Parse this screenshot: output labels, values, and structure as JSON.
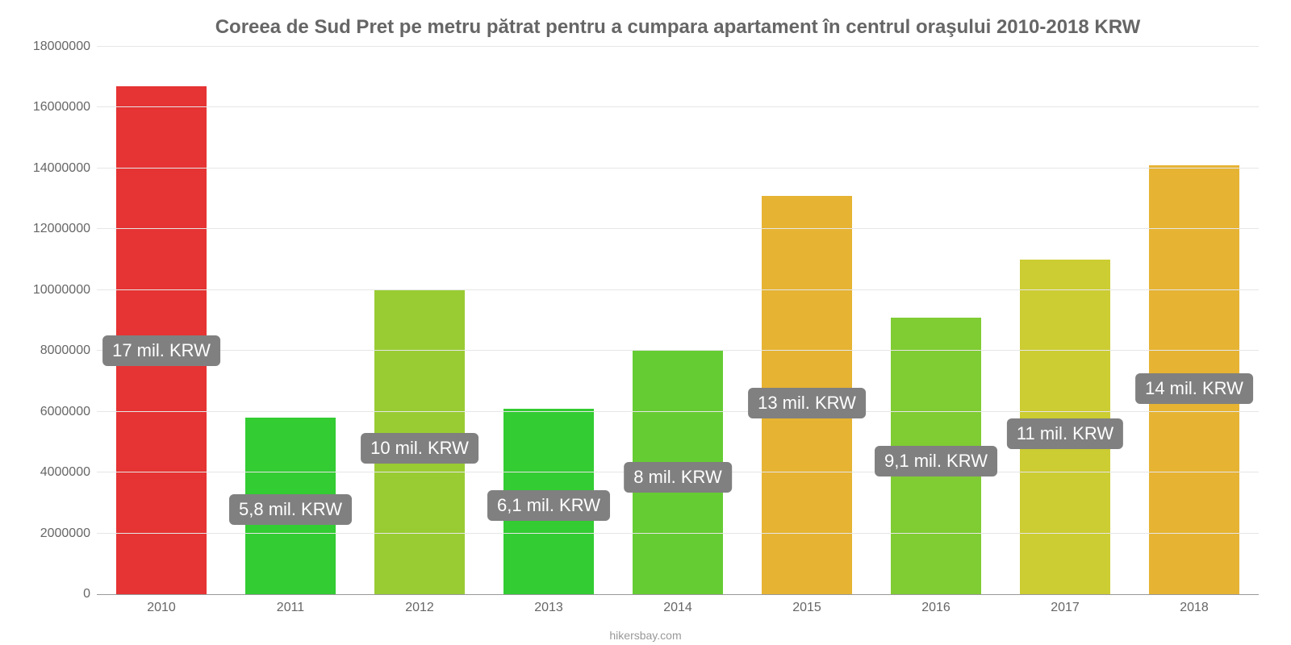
{
  "chart": {
    "type": "bar",
    "title": "Coreea de Sud Pret pe metru pătrat pentru a cumpara apartament în centrul oraşului 2010-2018 KRW",
    "title_fontsize": 24,
    "title_color": "#666666",
    "background_color": "#ffffff",
    "grid_color": "#e6e6e6",
    "axis_text_color": "#666666",
    "tick_fontsize": 16,
    "ylim": [
      0,
      18000000
    ],
    "ytick_step": 2000000,
    "yticks": [
      {
        "value": 0,
        "label": "0"
      },
      {
        "value": 2000000,
        "label": "2000000"
      },
      {
        "value": 4000000,
        "label": "4000000"
      },
      {
        "value": 6000000,
        "label": "6000000"
      },
      {
        "value": 8000000,
        "label": "8000000"
      },
      {
        "value": 10000000,
        "label": "10000000"
      },
      {
        "value": 12000000,
        "label": "12000000"
      },
      {
        "value": 14000000,
        "label": "14000000"
      },
      {
        "value": 16000000,
        "label": "16000000"
      },
      {
        "value": 18000000,
        "label": "18000000"
      }
    ],
    "categories": [
      "2010",
      "2011",
      "2012",
      "2013",
      "2014",
      "2015",
      "2016",
      "2017",
      "2018"
    ],
    "values": [
      16700000,
      5800000,
      10000000,
      6100000,
      8000000,
      13100000,
      9100000,
      11000000,
      14100000
    ],
    "bar_colors": [
      "#e63333",
      "#33cc33",
      "#99cc33",
      "#33cc33",
      "#66cc33",
      "#e6b333",
      "#80cc33",
      "#cccc33",
      "#e6b333"
    ],
    "data_labels": [
      "17 mil. KRW",
      "5,8 mil. KRW",
      "10 mil. KRW",
      "6,1 mil. KRW",
      "8 mil. KRW",
      "13 mil. KRW",
      "9,1 mil. KRW",
      "11 mil. KRW",
      "14 mil. KRW"
    ],
    "data_label_bg": "#808080",
    "data_label_color": "#ffffff",
    "data_label_fontsize": 22,
    "bar_width_pct": 70,
    "footer": "hikersbay.com",
    "footer_color": "#999999",
    "footer_fontsize": 14
  }
}
